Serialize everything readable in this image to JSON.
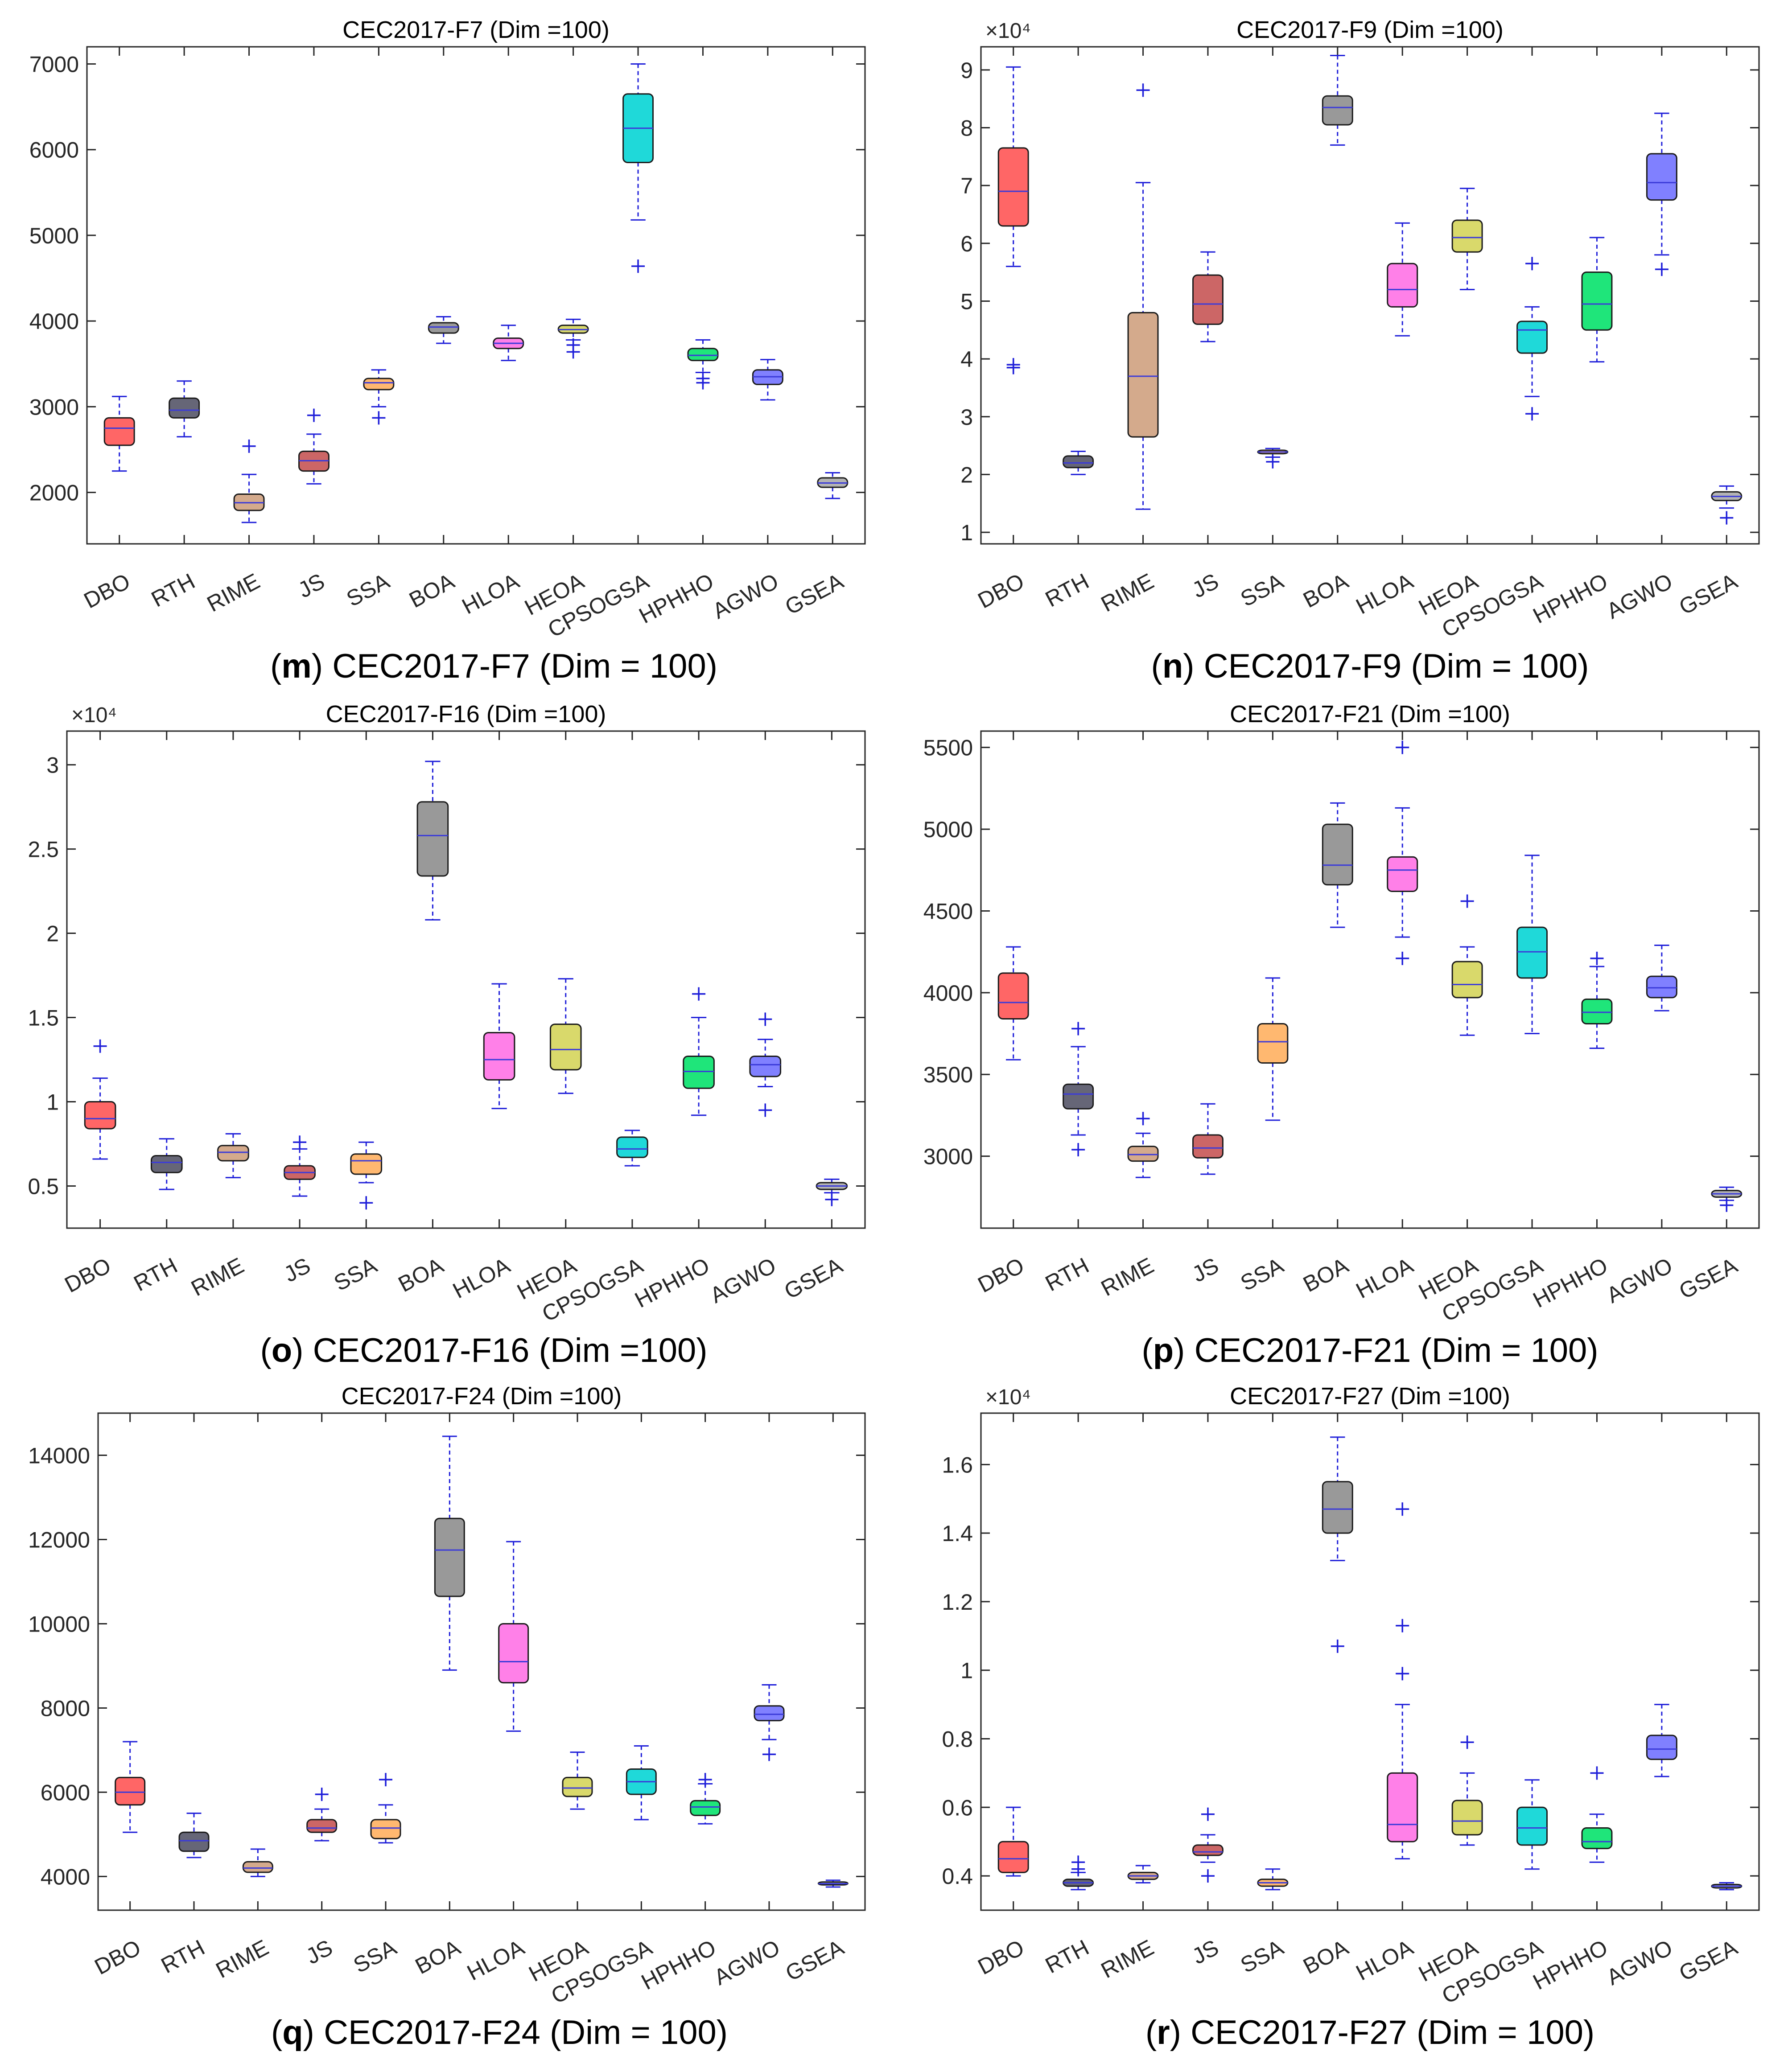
{
  "categories": [
    "DBO",
    "RTH",
    "RIME",
    "JS",
    "SSA",
    "BOA",
    "HLOA",
    "HEOA",
    "CPSOGSA",
    "HPHHO",
    "AGWO",
    "GSEA"
  ],
  "colors": [
    "#ff6666",
    "#666677",
    "#d4aa8c",
    "#cc6666",
    "#ffb870",
    "#999999",
    "#ff80e8",
    "#d9d96b",
    "#1fd9d9",
    "#1fe57a",
    "#8080ff",
    "#b3b3b3"
  ],
  "whisker_color": "#1f1fd9",
  "chart_data": [
    {
      "type": "box",
      "title": "CEC2017-F7 (Dim =100)",
      "caption_letter": "m",
      "caption_text": "CEC2017-F7 (Dim = 100)",
      "multiplier": "",
      "ylim": [
        1400,
        7200
      ],
      "yticks": [
        2000,
        3000,
        4000,
        5000,
        6000,
        7000
      ],
      "ytick_labels": [
        "2000",
        "3000",
        "4000",
        "5000",
        "6000",
        "7000"
      ],
      "boxes": [
        {
          "min": 2250,
          "q1": 2550,
          "median": 2750,
          "q3": 2870,
          "max": 3120,
          "outliers": []
        },
        {
          "min": 2650,
          "q1": 2870,
          "median": 2960,
          "q3": 3100,
          "max": 3300,
          "outliers": []
        },
        {
          "min": 1650,
          "q1": 1790,
          "median": 1880,
          "q3": 1980,
          "max": 2210,
          "outliers": [
            2540
          ]
        },
        {
          "min": 2100,
          "q1": 2250,
          "median": 2370,
          "q3": 2480,
          "max": 2680,
          "outliers": [
            2900
          ]
        },
        {
          "min": 3000,
          "q1": 3200,
          "median": 3280,
          "q3": 3330,
          "max": 3430,
          "outliers": [
            2870
          ]
        },
        {
          "min": 3740,
          "q1": 3860,
          "median": 3930,
          "q3": 3980,
          "max": 4050,
          "outliers": []
        },
        {
          "min": 3540,
          "q1": 3680,
          "median": 3740,
          "q3": 3800,
          "max": 3950,
          "outliers": []
        },
        {
          "min": 3780,
          "q1": 3860,
          "median": 3900,
          "q3": 3950,
          "max": 4020,
          "outliers": [
            3640,
            3720
          ]
        },
        {
          "min": 5180,
          "q1": 5850,
          "median": 6250,
          "q3": 6650,
          "max": 7000,
          "outliers": [
            4640
          ]
        },
        {
          "min": 3400,
          "q1": 3540,
          "median": 3600,
          "q3": 3680,
          "max": 3780,
          "outliers": [
            3280,
            3330
          ]
        },
        {
          "min": 3080,
          "q1": 3260,
          "median": 3350,
          "q3": 3430,
          "max": 3550,
          "outliers": []
        },
        {
          "min": 1930,
          "q1": 2060,
          "median": 2110,
          "q3": 2170,
          "max": 2230,
          "outliers": []
        }
      ]
    },
    {
      "type": "box",
      "title": "CEC2017-F9 (Dim =100)",
      "caption_letter": "n",
      "caption_text": "CEC2017-F9 (Dim = 100)",
      "multiplier": "×10⁴",
      "ylim": [
        0.8,
        9.4
      ],
      "yticks": [
        1,
        2,
        3,
        4,
        5,
        6,
        7,
        8,
        9
      ],
      "ytick_labels": [
        "1",
        "2",
        "3",
        "4",
        "5",
        "6",
        "7",
        "8",
        "9"
      ],
      "boxes": [
        {
          "min": 5.6,
          "q1": 6.3,
          "median": 6.9,
          "q3": 7.65,
          "max": 9.05,
          "outliers": [
            3.85,
            3.9
          ]
        },
        {
          "min": 2.0,
          "q1": 2.12,
          "median": 2.2,
          "q3": 2.32,
          "max": 2.4,
          "outliers": []
        },
        {
          "min": 1.4,
          "q1": 2.65,
          "median": 3.7,
          "q3": 4.8,
          "max": 7.05,
          "outliers": [
            8.65
          ]
        },
        {
          "min": 4.3,
          "q1": 4.6,
          "median": 4.95,
          "q3": 5.45,
          "max": 5.85,
          "outliers": []
        },
        {
          "min": 2.3,
          "q1": 2.36,
          "median": 2.39,
          "q3": 2.42,
          "max": 2.45,
          "outliers": [
            2.22
          ]
        },
        {
          "min": 7.7,
          "q1": 8.05,
          "median": 8.35,
          "q3": 8.55,
          "max": 9.25,
          "outliers": []
        },
        {
          "min": 4.4,
          "q1": 4.9,
          "median": 5.2,
          "q3": 5.65,
          "max": 6.35,
          "outliers": []
        },
        {
          "min": 5.2,
          "q1": 5.85,
          "median": 6.1,
          "q3": 6.4,
          "max": 6.95,
          "outliers": []
        },
        {
          "min": 3.35,
          "q1": 4.1,
          "median": 4.5,
          "q3": 4.65,
          "max": 4.9,
          "outliers": [
            3.05,
            5.65
          ]
        },
        {
          "min": 3.95,
          "q1": 4.5,
          "median": 4.95,
          "q3": 5.5,
          "max": 6.1,
          "outliers": []
        },
        {
          "min": 5.8,
          "q1": 6.75,
          "median": 7.05,
          "q3": 7.55,
          "max": 8.25,
          "outliers": [
            5.55
          ]
        },
        {
          "min": 1.42,
          "q1": 1.55,
          "median": 1.62,
          "q3": 1.7,
          "max": 1.8,
          "outliers": [
            1.25
          ]
        }
      ]
    },
    {
      "type": "box",
      "title": "CEC2017-F16 (Dim =100)",
      "caption_letter": "o",
      "caption_text": "CEC2017-F16 (Dim =100)",
      "multiplier": "×10⁴",
      "ylim": [
        0.25,
        3.2
      ],
      "yticks": [
        0.5,
        1,
        1.5,
        2,
        2.5,
        3
      ],
      "ytick_labels": [
        "0.5",
        "1",
        "1.5",
        "2",
        "2.5",
        "3"
      ],
      "boxes": [
        {
          "min": 0.66,
          "q1": 0.84,
          "median": 0.9,
          "q3": 1.0,
          "max": 1.14,
          "outliers": [
            1.33
          ]
        },
        {
          "min": 0.48,
          "q1": 0.58,
          "median": 0.64,
          "q3": 0.68,
          "max": 0.78,
          "outliers": []
        },
        {
          "min": 0.55,
          "q1": 0.65,
          "median": 0.7,
          "q3": 0.74,
          "max": 0.81,
          "outliers": []
        },
        {
          "min": 0.44,
          "q1": 0.54,
          "median": 0.58,
          "q3": 0.62,
          "max": 0.72,
          "outliers": [
            0.76
          ]
        },
        {
          "min": 0.52,
          "q1": 0.57,
          "median": 0.65,
          "q3": 0.69,
          "max": 0.76,
          "outliers": [
            0.4
          ]
        },
        {
          "min": 2.08,
          "q1": 2.34,
          "median": 2.58,
          "q3": 2.78,
          "max": 3.02,
          "outliers": []
        },
        {
          "min": 0.96,
          "q1": 1.13,
          "median": 1.25,
          "q3": 1.41,
          "max": 1.7,
          "outliers": []
        },
        {
          "min": 1.05,
          "q1": 1.19,
          "median": 1.31,
          "q3": 1.46,
          "max": 1.73,
          "outliers": []
        },
        {
          "min": 0.62,
          "q1": 0.67,
          "median": 0.72,
          "q3": 0.79,
          "max": 0.83,
          "outliers": []
        },
        {
          "min": 0.92,
          "q1": 1.08,
          "median": 1.18,
          "q3": 1.27,
          "max": 1.5,
          "outliers": [
            1.64
          ]
        },
        {
          "min": 1.09,
          "q1": 1.15,
          "median": 1.22,
          "q3": 1.27,
          "max": 1.37,
          "outliers": [
            0.95,
            1.49
          ]
        },
        {
          "min": 0.46,
          "q1": 0.48,
          "median": 0.5,
          "q3": 0.52,
          "max": 0.54,
          "outliers": [
            0.42
          ]
        }
      ]
    },
    {
      "type": "box",
      "title": "CEC2017-F21 (Dim =100)",
      "caption_letter": "p",
      "caption_text": "CEC2017-F21 (Dim = 100)",
      "multiplier": "",
      "ylim": [
        2560,
        5600
      ],
      "yticks": [
        3000,
        3500,
        4000,
        4500,
        5000,
        5500
      ],
      "ytick_labels": [
        "3000",
        "3500",
        "4000",
        "4500",
        "5000",
        "5500"
      ],
      "boxes": [
        {
          "min": 3590,
          "q1": 3840,
          "median": 3940,
          "q3": 4120,
          "max": 4280,
          "outliers": []
        },
        {
          "min": 3130,
          "q1": 3290,
          "median": 3380,
          "q3": 3440,
          "max": 3670,
          "outliers": [
            3040,
            3780
          ]
        },
        {
          "min": 2870,
          "q1": 2970,
          "median": 3010,
          "q3": 3060,
          "max": 3140,
          "outliers": [
            3230
          ]
        },
        {
          "min": 2890,
          "q1": 2990,
          "median": 3050,
          "q3": 3130,
          "max": 3320,
          "outliers": []
        },
        {
          "min": 3220,
          "q1": 3570,
          "median": 3700,
          "q3": 3810,
          "max": 4090,
          "outliers": []
        },
        {
          "min": 4400,
          "q1": 4660,
          "median": 4780,
          "q3": 5030,
          "max": 5160,
          "outliers": []
        },
        {
          "min": 4340,
          "q1": 4620,
          "median": 4750,
          "q3": 4830,
          "max": 5130,
          "outliers": [
            4210,
            5500
          ]
        },
        {
          "min": 3740,
          "q1": 3970,
          "median": 4050,
          "q3": 4190,
          "max": 4280,
          "outliers": [
            4560
          ]
        },
        {
          "min": 3750,
          "q1": 4090,
          "median": 4250,
          "q3": 4400,
          "max": 4840,
          "outliers": []
        },
        {
          "min": 3660,
          "q1": 3810,
          "median": 3880,
          "q3": 3960,
          "max": 4160,
          "outliers": [
            4210
          ]
        },
        {
          "min": 3890,
          "q1": 3970,
          "median": 4030,
          "q3": 4100,
          "max": 4290,
          "outliers": []
        },
        {
          "min": 2730,
          "q1": 2750,
          "median": 2770,
          "q3": 2790,
          "max": 2810,
          "outliers": [
            2700
          ]
        }
      ]
    },
    {
      "type": "box",
      "title": "CEC2017-F24 (Dim =100)",
      "caption_letter": "q",
      "caption_text": "CEC2017-F24 (Dim = 100)",
      "multiplier": "",
      "ylim": [
        3200,
        15000
      ],
      "yticks": [
        4000,
        6000,
        8000,
        10000,
        12000,
        14000
      ],
      "ytick_labels": [
        "4000",
        "6000",
        "8000",
        "10000",
        "12000",
        "14000"
      ],
      "boxes": [
        {
          "min": 5050,
          "q1": 5700,
          "median": 6000,
          "q3": 6350,
          "max": 7200,
          "outliers": []
        },
        {
          "min": 4450,
          "q1": 4600,
          "median": 4850,
          "q3": 5050,
          "max": 5500,
          "outliers": []
        },
        {
          "min": 4000,
          "q1": 4100,
          "median": 4200,
          "q3": 4350,
          "max": 4650,
          "outliers": []
        },
        {
          "min": 4850,
          "q1": 5050,
          "median": 5150,
          "q3": 5350,
          "max": 5600,
          "outliers": [
            5950
          ]
        },
        {
          "min": 4800,
          "q1": 4900,
          "median": 5150,
          "q3": 5350,
          "max": 5700,
          "outliers": [
            6300
          ]
        },
        {
          "min": 8900,
          "q1": 10650,
          "median": 11750,
          "q3": 12500,
          "max": 14450,
          "outliers": []
        },
        {
          "min": 7450,
          "q1": 8600,
          "median": 9100,
          "q3": 10000,
          "max": 11950,
          "outliers": []
        },
        {
          "min": 5600,
          "q1": 5900,
          "median": 6100,
          "q3": 6350,
          "max": 6950,
          "outliers": []
        },
        {
          "min": 5350,
          "q1": 5950,
          "median": 6250,
          "q3": 6550,
          "max": 7100,
          "outliers": []
        },
        {
          "min": 5250,
          "q1": 5450,
          "median": 5650,
          "q3": 5800,
          "max": 6200,
          "outliers": [
            6300
          ]
        },
        {
          "min": 7250,
          "q1": 7700,
          "median": 7850,
          "q3": 8050,
          "max": 8550,
          "outliers": [
            6900
          ]
        },
        {
          "min": 3750,
          "q1": 3800,
          "median": 3830,
          "q3": 3870,
          "max": 3910,
          "outliers": []
        }
      ]
    },
    {
      "type": "box",
      "title": "CEC2017-F27 (Dim =100)",
      "caption_letter": "r",
      "caption_text": "CEC2017-F27 (Dim = 100)",
      "multiplier": "×10⁴",
      "ylim": [
        0.3,
        1.75
      ],
      "yticks": [
        0.4,
        0.6,
        0.8,
        1,
        1.2,
        1.4,
        1.6
      ],
      "ytick_labels": [
        "0.4",
        "0.6",
        "0.8",
        "1",
        "1.2",
        "1.4",
        "1.6"
      ],
      "boxes": [
        {
          "min": 0.4,
          "q1": 0.41,
          "median": 0.45,
          "q3": 0.5,
          "max": 0.6,
          "outliers": []
        },
        {
          "min": 0.36,
          "q1": 0.37,
          "median": 0.38,
          "q3": 0.39,
          "max": 0.41,
          "outliers": [
            0.42,
            0.44
          ]
        },
        {
          "min": 0.38,
          "q1": 0.39,
          "median": 0.4,
          "q3": 0.41,
          "max": 0.43,
          "outliers": []
        },
        {
          "min": 0.44,
          "q1": 0.46,
          "median": 0.47,
          "q3": 0.49,
          "max": 0.52,
          "outliers": [
            0.4,
            0.58
          ]
        },
        {
          "min": 0.36,
          "q1": 0.37,
          "median": 0.38,
          "q3": 0.39,
          "max": 0.42,
          "outliers": []
        },
        {
          "min": 1.32,
          "q1": 1.4,
          "median": 1.47,
          "q3": 1.55,
          "max": 1.68,
          "outliers": [
            1.07
          ]
        },
        {
          "min": 0.45,
          "q1": 0.5,
          "median": 0.55,
          "q3": 0.7,
          "max": 0.9,
          "outliers": [
            0.99,
            1.13,
            1.47
          ]
        },
        {
          "min": 0.49,
          "q1": 0.52,
          "median": 0.56,
          "q3": 0.62,
          "max": 0.7,
          "outliers": [
            0.79
          ]
        },
        {
          "min": 0.42,
          "q1": 0.49,
          "median": 0.54,
          "q3": 0.6,
          "max": 0.68,
          "outliers": []
        },
        {
          "min": 0.44,
          "q1": 0.48,
          "median": 0.5,
          "q3": 0.54,
          "max": 0.58,
          "outliers": [
            0.7
          ]
        },
        {
          "min": 0.69,
          "q1": 0.74,
          "median": 0.77,
          "q3": 0.81,
          "max": 0.9,
          "outliers": []
        },
        {
          "min": 0.36,
          "q1": 0.365,
          "median": 0.37,
          "q3": 0.375,
          "max": 0.38,
          "outliers": []
        }
      ]
    }
  ]
}
